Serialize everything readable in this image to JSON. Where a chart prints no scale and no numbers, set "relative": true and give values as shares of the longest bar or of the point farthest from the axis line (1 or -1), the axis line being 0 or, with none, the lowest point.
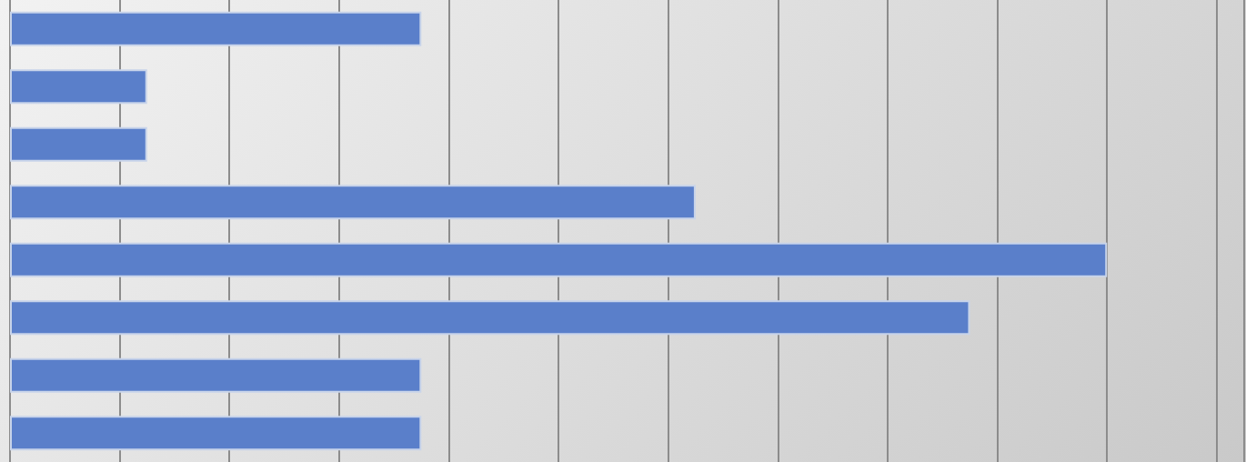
{
  "chart_data": {
    "type": "bar",
    "orientation": "horizontal",
    "relative": true,
    "categories": [
      null,
      null,
      null,
      null,
      null,
      null,
      null,
      null
    ],
    "series": [
      {
        "color": "#5a7fca",
        "values": [
          0.375,
          0.125,
          0.125,
          0.625,
          1,
          0.875,
          0.375,
          0.375
        ]
      }
    ],
    "grid": "x"
  }
}
